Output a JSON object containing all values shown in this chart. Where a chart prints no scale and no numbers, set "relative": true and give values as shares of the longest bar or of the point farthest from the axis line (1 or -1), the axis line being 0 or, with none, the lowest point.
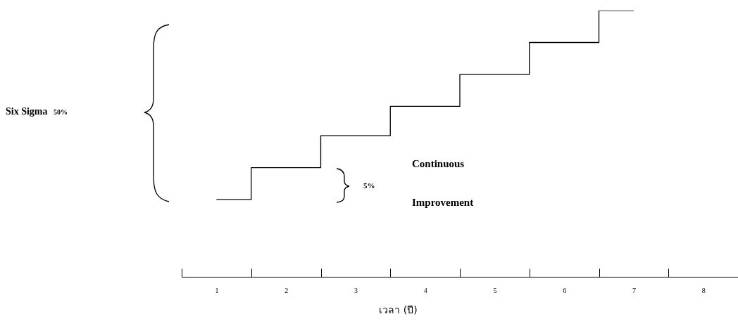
{
  "chart_data": {
    "type": "step",
    "xlabel": "เวลา (ปี)",
    "categories": [
      "1",
      "2",
      "3",
      "4",
      "5",
      "6",
      "7",
      "8"
    ],
    "values": [
      0.29,
      0.41,
      0.53,
      0.64,
      0.76,
      0.88,
      1,
      null
    ],
    "color": "#000000",
    "relative": true,
    "grid": false,
    "annotations": [
      "Six Sigma",
      "50%",
      "5%",
      "Continuous Improvement"
    ]
  }
}
